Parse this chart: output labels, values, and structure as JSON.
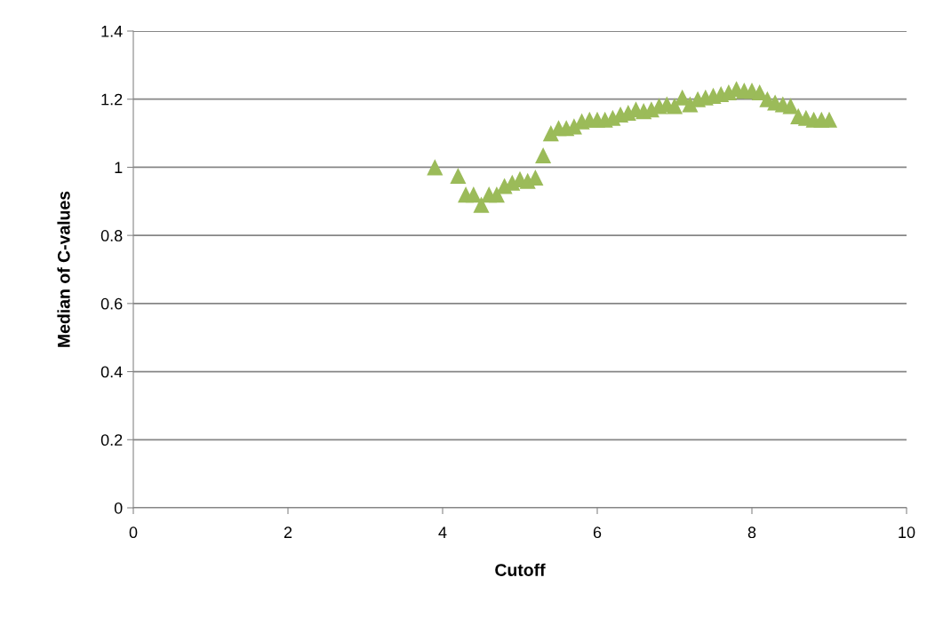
{
  "chart_data": {
    "type": "scatter",
    "xlabel": "Cutoff",
    "ylabel": "Median of C-values",
    "x": [
      3.9,
      4.2,
      4.3,
      4.4,
      4.5,
      4.6,
      4.7,
      4.8,
      4.9,
      5.0,
      5.1,
      5.2,
      5.3,
      5.4,
      5.5,
      5.6,
      5.7,
      5.8,
      5.9,
      6.0,
      6.1,
      6.2,
      6.3,
      6.4,
      6.5,
      6.6,
      6.7,
      6.8,
      6.9,
      7.0,
      7.1,
      7.2,
      7.3,
      7.4,
      7.5,
      7.6,
      7.7,
      7.8,
      7.9,
      8.0,
      8.1,
      8.2,
      8.3,
      8.4,
      8.5,
      8.6,
      8.7,
      8.8,
      8.9,
      9.0
    ],
    "series": [
      {
        "color": "#9bbb59",
        "values": [
          1.0,
          0.975,
          0.92,
          0.92,
          0.89,
          0.92,
          0.92,
          0.945,
          0.955,
          0.965,
          0.96,
          0.97,
          1.035,
          1.1,
          1.115,
          1.115,
          1.12,
          1.135,
          1.14,
          1.14,
          1.14,
          1.145,
          1.155,
          1.16,
          1.17,
          1.165,
          1.17,
          1.18,
          1.185,
          1.18,
          1.205,
          1.185,
          1.2,
          1.205,
          1.21,
          1.215,
          1.22,
          1.23,
          1.225,
          1.225,
          1.22,
          1.2,
          1.19,
          1.185,
          1.18,
          1.15,
          1.145,
          1.14,
          1.14,
          1.14
        ]
      }
    ],
    "xlim": [
      0,
      10
    ],
    "xticks": [
      0,
      2,
      4,
      6,
      8,
      10
    ],
    "ylim": [
      0,
      1.4
    ],
    "yticks": [
      0,
      0.2,
      0.4,
      0.6,
      0.8,
      1,
      1.2,
      1.4
    ],
    "grid": "y",
    "marker": "triangle",
    "legend": false
  }
}
